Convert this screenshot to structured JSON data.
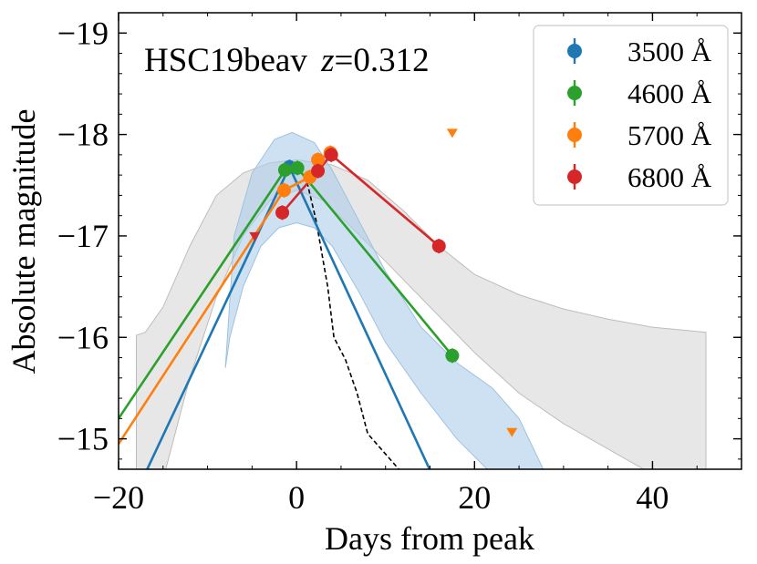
{
  "chart_data": {
    "type": "line",
    "title": "",
    "annotation": {
      "object": "HSC19beav",
      "z_label": "z",
      "equals": "=",
      "z_value": "0.312"
    },
    "xlabel": "Days from peak",
    "ylabel": "Absolute magnitude",
    "xlim": [
      -20,
      50
    ],
    "ylim": [
      -14.7,
      -19.2
    ],
    "y_inverted": true,
    "xticks": [
      -20,
      0,
      20,
      40
    ],
    "xtick_labels": [
      "−20",
      "0",
      "20",
      "40"
    ],
    "yticks": [
      -15,
      -16,
      -17,
      -18,
      -19
    ],
    "ytick_labels": [
      "−15",
      "−16",
      "−17",
      "−18",
      "−19"
    ],
    "grid": false,
    "legend_position": "top-right",
    "series": [
      {
        "name": "3500 Å",
        "color": "#1f77b4",
        "points": [
          {
            "x": -0.8,
            "y": -17.68
          }
        ],
        "model_line": [
          {
            "x": -20,
            "y": -14.1
          },
          {
            "x": -0.8,
            "y": -17.68
          },
          {
            "x": 16,
            "y": -14.5
          }
        ]
      },
      {
        "name": "4600 Å",
        "color": "#2ca02c",
        "points": [
          {
            "x": -1.3,
            "y": -17.65
          },
          {
            "x": 0.1,
            "y": -17.67
          },
          {
            "x": 17.5,
            "y": -15.82
          }
        ],
        "model_line": [
          {
            "x": -20,
            "y": -15.2
          },
          {
            "x": -1.3,
            "y": -17.65
          },
          {
            "x": 0.1,
            "y": -17.67
          },
          {
            "x": 17.5,
            "y": -15.82
          }
        ]
      },
      {
        "name": "5700 Å",
        "color": "#ff7f0e",
        "points": [
          {
            "x": -1.4,
            "y": -17.45
          },
          {
            "x": 1.5,
            "y": -17.58
          },
          {
            "x": 2.4,
            "y": -17.75
          },
          {
            "x": 3.8,
            "y": -17.82
          }
        ],
        "upper_limits": [
          {
            "x": 17.5,
            "y": -18.02
          },
          {
            "x": 24.2,
            "y": -15.07
          }
        ],
        "model_line": [
          {
            "x": -20,
            "y": -14.95
          },
          {
            "x": -1.4,
            "y": -17.45
          },
          {
            "x": 1.5,
            "y": -17.58
          },
          {
            "x": 2.4,
            "y": -17.75
          },
          {
            "x": 3.8,
            "y": -17.82
          }
        ]
      },
      {
        "name": "6800 Å",
        "color": "#d62728",
        "points": [
          {
            "x": -1.6,
            "y": -17.23
          },
          {
            "x": 2.4,
            "y": -17.64
          },
          {
            "x": 3.9,
            "y": -17.8
          },
          {
            "x": 16,
            "y": -16.9
          }
        ],
        "upper_limits": [
          {
            "x": -4.7,
            "y": -17.0
          }
        ],
        "model_line": [
          {
            "x": -1.6,
            "y": -17.23
          },
          {
            "x": 2.4,
            "y": -17.64
          },
          {
            "x": 3.9,
            "y": -17.8
          },
          {
            "x": 16,
            "y": -16.9
          }
        ]
      }
    ],
    "comparison_band_gray": {
      "color": "#d3d3d3",
      "upper": [
        {
          "x": -18,
          "y": -16.02
        },
        {
          "x": -17,
          "y": -16.05
        },
        {
          "x": -15,
          "y": -16.3
        },
        {
          "x": -12,
          "y": -16.9
        },
        {
          "x": -9,
          "y": -17.4
        },
        {
          "x": -6,
          "y": -17.62
        },
        {
          "x": -3,
          "y": -17.72
        },
        {
          "x": 0,
          "y": -17.75
        },
        {
          "x": 4,
          "y": -17.7
        },
        {
          "x": 8,
          "y": -17.55
        },
        {
          "x": 12,
          "y": -17.25
        },
        {
          "x": 16,
          "y": -16.9
        },
        {
          "x": 20,
          "y": -16.62
        },
        {
          "x": 25,
          "y": -16.42
        },
        {
          "x": 30,
          "y": -16.28
        },
        {
          "x": 35,
          "y": -16.18
        },
        {
          "x": 40,
          "y": -16.1
        },
        {
          "x": 46,
          "y": -16.05
        }
      ],
      "lower": [
        {
          "x": 46,
          "y": -14.5
        },
        {
          "x": 41,
          "y": -14.6
        },
        {
          "x": 36,
          "y": -14.85
        },
        {
          "x": 30,
          "y": -15.15
        },
        {
          "x": 25,
          "y": -15.45
        },
        {
          "x": 20,
          "y": -15.85
        },
        {
          "x": 15,
          "y": -16.3
        },
        {
          "x": 10,
          "y": -16.75
        },
        {
          "x": 6,
          "y": -17.1
        },
        {
          "x": 3,
          "y": -17.35
        },
        {
          "x": 0,
          "y": -17.45
        },
        {
          "x": -3,
          "y": -17.35
        },
        {
          "x": -6,
          "y": -17.0
        },
        {
          "x": -9,
          "y": -16.4
        },
        {
          "x": -12,
          "y": -15.6
        },
        {
          "x": -15,
          "y": -14.6
        },
        {
          "x": -18,
          "y": -13.8
        }
      ]
    },
    "model_band_blue": {
      "color": "#aecde9",
      "upper": [
        {
          "x": -8,
          "y": -15.7
        },
        {
          "x": -7,
          "y": -17.0
        },
        {
          "x": -5,
          "y": -17.62
        },
        {
          "x": -2.5,
          "y": -17.95
        },
        {
          "x": -0.5,
          "y": -18.02
        },
        {
          "x": 2,
          "y": -17.92
        },
        {
          "x": 4,
          "y": -17.65
        },
        {
          "x": 7,
          "y": -17.15
        },
        {
          "x": 10,
          "y": -16.65
        },
        {
          "x": 14,
          "y": -16.1
        },
        {
          "x": 18,
          "y": -15.75
        },
        {
          "x": 22,
          "y": -15.5
        },
        {
          "x": 25,
          "y": -15.2
        },
        {
          "x": 28,
          "y": -14.65
        }
      ],
      "lower": [
        {
          "x": 22,
          "y": -14.65
        },
        {
          "x": 18,
          "y": -15.0
        },
        {
          "x": 14,
          "y": -15.45
        },
        {
          "x": 10,
          "y": -15.95
        },
        {
          "x": 7,
          "y": -16.45
        },
        {
          "x": 4,
          "y": -16.9
        },
        {
          "x": 2,
          "y": -17.08
        },
        {
          "x": 0,
          "y": -17.13
        },
        {
          "x": -2,
          "y": -17.08
        },
        {
          "x": -4,
          "y": -16.9
        },
        {
          "x": -6,
          "y": -16.5
        },
        {
          "x": -7.5,
          "y": -16.0
        },
        {
          "x": -8,
          "y": -15.7
        }
      ]
    },
    "reference_curve_dashed": {
      "color": "#000000",
      "points": [
        {
          "x": 1.0,
          "y": -17.6
        },
        {
          "x": 2.2,
          "y": -17.15
        },
        {
          "x": 3.5,
          "y": -16.5
        },
        {
          "x": 4.2,
          "y": -16.0
        },
        {
          "x": 5.5,
          "y": -15.78
        },
        {
          "x": 6.8,
          "y": -15.45
        },
        {
          "x": 8.0,
          "y": -15.05
        },
        {
          "x": 9.5,
          "y": -14.9
        },
        {
          "x": 10.5,
          "y": -14.8
        },
        {
          "x": 12.5,
          "y": -14.6
        }
      ]
    }
  }
}
